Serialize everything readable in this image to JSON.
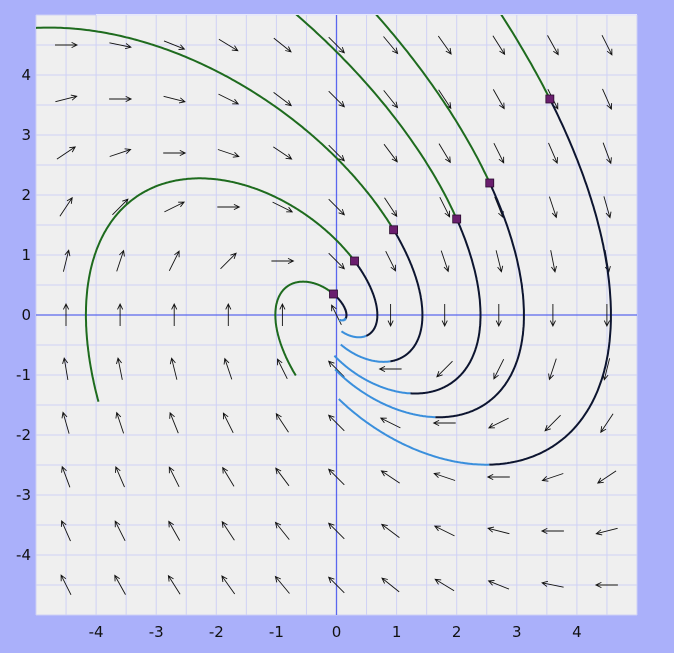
{
  "chart_data": {
    "type": "phase_portrait",
    "title": "",
    "xlabel": "",
    "ylabel": "",
    "xlim": [
      -5,
      5
    ],
    "ylim": [
      -5,
      5
    ],
    "grid": true,
    "gridstep": 0.5,
    "x_ticks": [
      -4,
      -3,
      -2,
      -1,
      0,
      1,
      2,
      3,
      4
    ],
    "y_ticks": [
      4,
      3,
      2,
      1,
      0,
      -1,
      -2,
      -3,
      -4
    ],
    "x_tick_labels": [
      "-4",
      "-3",
      "-2",
      "-1",
      "0",
      "1",
      "2",
      "3",
      "4"
    ],
    "y_tick_labels": [
      "4",
      "3",
      "2",
      "1",
      "0",
      "-1",
      "-2",
      "-3",
      "-4"
    ],
    "vector_field": {
      "dx": "y",
      "dy": "-x - y",
      "grid_x": [
        -4.5,
        4.5,
        0.9
      ],
      "grid_y": [
        -4.5,
        4.5,
        0.9
      ]
    },
    "initial_points": [
      {
        "x": -0.05,
        "y": 0.35
      },
      {
        "x": 0.3,
        "y": 0.9
      },
      {
        "x": 0.95,
        "y": 1.42
      },
      {
        "x": 2.0,
        "y": 1.6
      },
      {
        "x": 2.55,
        "y": 2.2
      },
      {
        "x": 3.55,
        "y": 3.6
      }
    ],
    "colors": {
      "background": "#aab0fa",
      "plot_background": "#efefef",
      "grid": "#cfd1f5",
      "axis": "#5a67ee",
      "forward_curve": "#0d1530",
      "backward_curve": "#1e6b1e",
      "end_curve": "#3a8fdc",
      "arrow": "#111111",
      "marker": "#6a1e6e",
      "top_border": "#ffffff"
    }
  }
}
